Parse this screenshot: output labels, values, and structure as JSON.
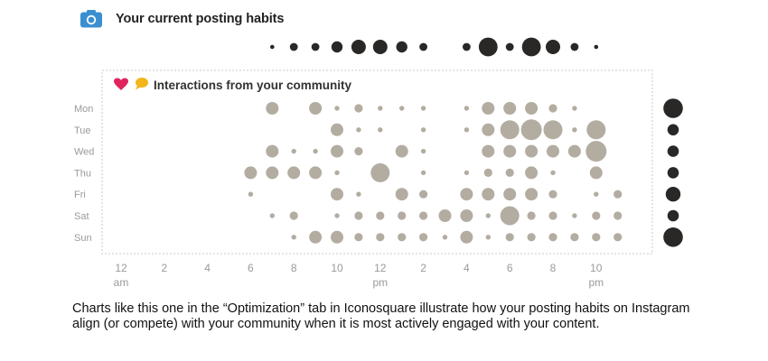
{
  "header": {
    "title": "Your current posting habits",
    "icon": "camera-icon"
  },
  "panel": {
    "title": "Interactions from your community",
    "icons": [
      "heart-icon",
      "speech-bubble-icon"
    ]
  },
  "caption": "Charts like this one in the “Optimization” tab in Iconosquare illustrate how your posting habits on Instagram align (or compete) with your community when it is most actively engaged with your content.",
  "colors": {
    "accent_blue": "#3a8fd0",
    "heart": "#e0245e",
    "bubble": "#f2b619",
    "community_dots": "#b3aca1",
    "posting_dots": "#2a2826",
    "panel_border": "#c8c8c8"
  },
  "chart_data": {
    "type": "scatter",
    "subtype": "punchcard",
    "x_axis": {
      "range": [
        0,
        23
      ],
      "unit": "hour of day",
      "ticks": [
        {
          "hour": 0,
          "label": "12",
          "sub": "am"
        },
        {
          "hour": 2,
          "label": "2",
          "sub": ""
        },
        {
          "hour": 4,
          "label": "4",
          "sub": ""
        },
        {
          "hour": 6,
          "label": "6",
          "sub": ""
        },
        {
          "hour": 8,
          "label": "8",
          "sub": ""
        },
        {
          "hour": 10,
          "label": "10",
          "sub": ""
        },
        {
          "hour": 12,
          "label": "12",
          "sub": "pm"
        },
        {
          "hour": 14,
          "label": "2",
          "sub": ""
        },
        {
          "hour": 16,
          "label": "4",
          "sub": ""
        },
        {
          "hour": 18,
          "label": "6",
          "sub": ""
        },
        {
          "hour": 20,
          "label": "8",
          "sub": ""
        },
        {
          "hour": 22,
          "label": "10",
          "sub": "pm"
        }
      ]
    },
    "days": [
      "Mon",
      "Tue",
      "Wed",
      "Thu",
      "Fri",
      "Sat",
      "Sun"
    ],
    "posting_by_hour": [
      {
        "hour": 7,
        "size": 1
      },
      {
        "hour": 8,
        "size": 2
      },
      {
        "hour": 9,
        "size": 2
      },
      {
        "hour": 10,
        "size": 3
      },
      {
        "hour": 11,
        "size": 4
      },
      {
        "hour": 12,
        "size": 4
      },
      {
        "hour": 13,
        "size": 3
      },
      {
        "hour": 14,
        "size": 2
      },
      {
        "hour": 16,
        "size": 2
      },
      {
        "hour": 17,
        "size": 5
      },
      {
        "hour": 18,
        "size": 2
      },
      {
        "hour": 19,
        "size": 5
      },
      {
        "hour": 20,
        "size": 4
      },
      {
        "hour": 21,
        "size": 2
      },
      {
        "hour": 22,
        "size": 1
      }
    ],
    "posting_by_day": [
      {
        "day": "Mon",
        "size": 5
      },
      {
        "day": "Tue",
        "size": 3
      },
      {
        "day": "Wed",
        "size": 3
      },
      {
        "day": "Thu",
        "size": 3
      },
      {
        "day": "Fri",
        "size": 4
      },
      {
        "day": "Sat",
        "size": 3
      },
      {
        "day": "Sun",
        "size": 5
      }
    ],
    "community": {
      "Mon": [
        [
          7,
          3
        ],
        [
          9,
          3
        ],
        [
          10,
          1
        ],
        [
          11,
          2
        ],
        [
          12,
          1
        ],
        [
          13,
          1
        ],
        [
          14,
          1
        ],
        [
          16,
          1
        ],
        [
          17,
          3
        ],
        [
          18,
          3
        ],
        [
          19,
          3
        ],
        [
          20,
          2
        ],
        [
          21,
          1
        ]
      ],
      "Tue": [
        [
          10,
          3
        ],
        [
          11,
          1
        ],
        [
          12,
          1
        ],
        [
          14,
          1
        ],
        [
          16,
          1
        ],
        [
          17,
          3
        ],
        [
          18,
          4
        ],
        [
          19,
          5
        ],
        [
          20,
          4
        ],
        [
          21,
          1
        ],
        [
          22,
          4
        ]
      ],
      "Wed": [
        [
          7,
          3
        ],
        [
          8,
          1
        ],
        [
          9,
          1
        ],
        [
          10,
          3
        ],
        [
          11,
          2
        ],
        [
          13,
          3
        ],
        [
          14,
          1
        ],
        [
          17,
          3
        ],
        [
          18,
          3
        ],
        [
          19,
          3
        ],
        [
          20,
          3
        ],
        [
          21,
          3
        ],
        [
          22,
          5
        ]
      ],
      "Thu": [
        [
          6,
          3
        ],
        [
          7,
          3
        ],
        [
          8,
          3
        ],
        [
          9,
          3
        ],
        [
          10,
          1
        ],
        [
          12,
          4
        ],
        [
          14,
          1
        ],
        [
          16,
          1
        ],
        [
          17,
          2
        ],
        [
          18,
          2
        ],
        [
          19,
          3
        ],
        [
          20,
          1
        ],
        [
          22,
          3
        ]
      ],
      "Fri": [
        [
          6,
          1
        ],
        [
          10,
          3
        ],
        [
          11,
          1
        ],
        [
          13,
          3
        ],
        [
          14,
          2
        ],
        [
          16,
          3
        ],
        [
          17,
          3
        ],
        [
          18,
          3
        ],
        [
          19,
          3
        ],
        [
          20,
          2
        ],
        [
          22,
          1
        ],
        [
          23,
          2
        ]
      ],
      "Sat": [
        [
          7,
          1
        ],
        [
          8,
          2
        ],
        [
          10,
          1
        ],
        [
          11,
          2
        ],
        [
          12,
          2
        ],
        [
          13,
          2
        ],
        [
          14,
          2
        ],
        [
          15,
          3
        ],
        [
          16,
          3
        ],
        [
          17,
          1
        ],
        [
          18,
          4
        ],
        [
          19,
          2
        ],
        [
          20,
          2
        ],
        [
          21,
          1
        ],
        [
          22,
          2
        ],
        [
          23,
          2
        ]
      ],
      "Sun": [
        [
          8,
          1
        ],
        [
          9,
          3
        ],
        [
          10,
          3
        ],
        [
          11,
          2
        ],
        [
          12,
          2
        ],
        [
          13,
          2
        ],
        [
          14,
          2
        ],
        [
          15,
          1
        ],
        [
          16,
          3
        ],
        [
          17,
          1
        ],
        [
          18,
          2
        ],
        [
          19,
          2
        ],
        [
          20,
          2
        ],
        [
          21,
          2
        ],
        [
          22,
          2
        ],
        [
          23,
          2
        ]
      ]
    }
  }
}
